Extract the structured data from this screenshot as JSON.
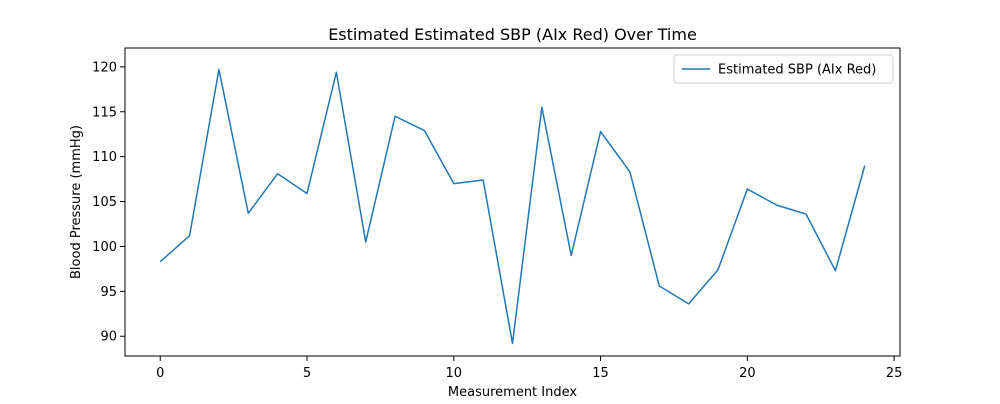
{
  "chart_data": {
    "type": "line",
    "title": "Estimated Estimated SBP (AIx Red) Over Time",
    "xlabel": "Measurement Index",
    "ylabel": "Blood Pressure (mmHg)",
    "xlim": [
      -1.2,
      25.2
    ],
    "ylim": [
      87.8,
      122.1
    ],
    "xticks": [
      0,
      5,
      10,
      15,
      20,
      25
    ],
    "yticks": [
      90,
      95,
      100,
      105,
      110,
      115,
      120
    ],
    "xtick_labels": [
      "0",
      "5",
      "10",
      "15",
      "20",
      "25"
    ],
    "ytick_labels": [
      "90",
      "95",
      "100",
      "105",
      "110",
      "115",
      "120"
    ],
    "grid": false,
    "legend_position": "upper right",
    "series": [
      {
        "name": "Estimated SBP (AIx Red)",
        "color": "#1f77b4",
        "x": [
          0,
          1,
          2,
          3,
          4,
          5,
          6,
          7,
          8,
          9,
          10,
          11,
          12,
          13,
          14,
          15,
          16,
          17,
          18,
          19,
          20,
          21,
          22,
          23,
          24
        ],
        "y": [
          98.3,
          101.2,
          119.7,
          103.7,
          108.1,
          105.9,
          119.4,
          100.5,
          114.5,
          112.9,
          107.0,
          107.4,
          89.2,
          115.5,
          99.0,
          112.8,
          108.3,
          95.6,
          93.6,
          97.4,
          106.4,
          104.6,
          103.6,
          97.3,
          109.0
        ]
      }
    ]
  }
}
